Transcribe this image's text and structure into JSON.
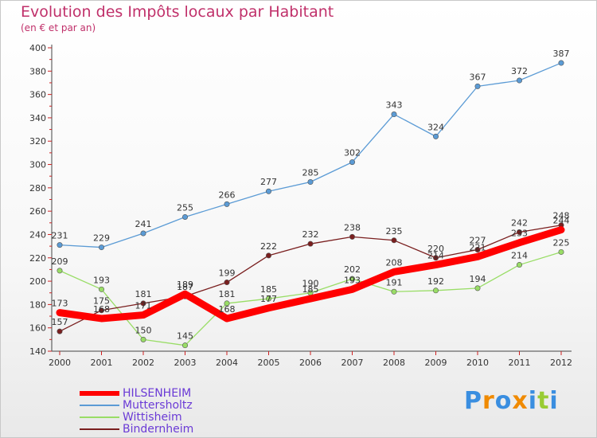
{
  "chart_data": {
    "type": "line",
    "title": "Evolution des Impôts locaux par Habitant",
    "subtitle": "(en € et par an)",
    "x": [
      "2000",
      "2001",
      "2002",
      "2003",
      "2004",
      "2005",
      "2006",
      "2007",
      "2008",
      "2009",
      "2010",
      "2011",
      "2012"
    ],
    "ylim": [
      140,
      400
    ],
    "yticks": [
      140,
      160,
      180,
      200,
      220,
      240,
      260,
      280,
      300,
      320,
      340,
      360,
      380,
      400
    ],
    "grid": false,
    "legend_position": "bottom-left",
    "series": [
      {
        "name": "HILSENHEIM",
        "color": "#ff0000",
        "values": [
          173,
          168,
          171,
          189,
          168,
          177,
          185,
          193,
          208,
          214,
          221,
          233,
          244
        ]
      },
      {
        "name": "Muttersholtz",
        "color": "#5b9bd5",
        "values": [
          231,
          229,
          241,
          255,
          266,
          277,
          285,
          302,
          343,
          324,
          367,
          372,
          387
        ]
      },
      {
        "name": "Wittisheim",
        "color": "#99dd66",
        "values": [
          209,
          193,
          150,
          145,
          181,
          185,
          190,
          202,
          191,
          192,
          194,
          214,
          225
        ]
      },
      {
        "name": "Bindernheim",
        "color": "#7a1f1f",
        "values": [
          157,
          175,
          181,
          187,
          199,
          222,
          232,
          238,
          235,
          220,
          227,
          242,
          248
        ]
      }
    ]
  },
  "logo": {
    "text": "Proxiti",
    "letters": [
      "P",
      "r",
      "o",
      "x",
      "i",
      "t",
      "i"
    ],
    "colors": [
      "#3a8ee0",
      "#f08a00",
      "#3a8ee0",
      "#f08a00",
      "#3a8ee0",
      "#99cc33",
      "#3a8ee0"
    ]
  }
}
